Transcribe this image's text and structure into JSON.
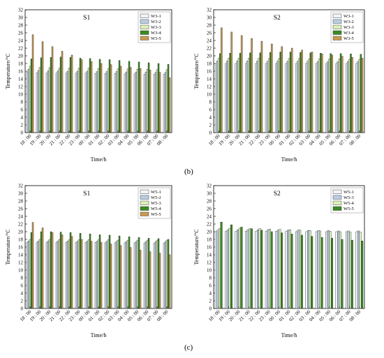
{
  "figure": {
    "labels": {
      "b": "(b)",
      "c": "(c)"
    }
  },
  "palette": {
    "W3-1": "#eef4fb",
    "W3-2": "#b9cfe6",
    "W3-3": "#ddf0b8",
    "W3-4": "#3b8a24",
    "W3-5": "#c89a52",
    "W5-1": "#eef4fb",
    "W5-2": "#b9cfe6",
    "W5-3": "#ddf0b8",
    "W5-4": "#3b8a24",
    "W5-5": "#c89a52",
    "S2c-W5-1": "#eef4fb",
    "S2c-W5-3": "#b9cfe6",
    "S2c-W5-4": "#ddf0b8",
    "S2c-W5-5": "#3b8a24"
  },
  "chart_data": [
    {
      "id": "b-S1",
      "type": "bar",
      "title": "S1",
      "xlabel": "Time/h",
      "ylabel": "Temperature/°C",
      "ylim": [
        0,
        32
      ],
      "yticks": [
        0,
        2,
        4,
        6,
        8,
        10,
        12,
        14,
        16,
        18,
        20,
        22,
        24,
        26,
        28,
        30,
        32
      ],
      "categories": [
        "18 : 00",
        "19 : 00",
        "20 : 00",
        "21 : 00",
        "22 : 00",
        "23 : 00",
        "00 : 00",
        "01 : 00",
        "02 : 00",
        "03 : 00",
        "04 : 00",
        "05 : 00",
        "06 : 00",
        "07 : 00",
        "08 : 00"
      ],
      "legend": "top-right",
      "series": [
        {
          "name": "W3-1",
          "color_key": "W3-1",
          "values": [
            15.8,
            15.6,
            15.5,
            15.5,
            15.5,
            15.5,
            15.5,
            15.4,
            15.4,
            15.4,
            15.3,
            15.3,
            15.2,
            15.2,
            15.2
          ]
        },
        {
          "name": "W3-2",
          "color_key": "W3-2",
          "values": [
            16.5,
            16.2,
            16.1,
            16.1,
            16.0,
            16.0,
            16.0,
            15.9,
            15.9,
            15.9,
            15.8,
            15.8,
            15.8,
            15.7,
            15.7
          ]
        },
        {
          "name": "W3-3",
          "color_key": "W3-3",
          "values": [
            17.3,
            17.0,
            16.9,
            16.8,
            16.8,
            16.8,
            16.8,
            16.7,
            16.6,
            16.6,
            16.6,
            16.5,
            16.5,
            16.4,
            16.4
          ]
        },
        {
          "name": "W3-4",
          "color_key": "W3-4",
          "values": [
            19.2,
            19.5,
            19.6,
            19.7,
            19.6,
            19.4,
            19.3,
            19.1,
            19.0,
            18.8,
            18.6,
            18.4,
            18.2,
            18.0,
            17.8
          ]
        },
        {
          "name": "W3-5",
          "color_key": "W3-5",
          "values": [
            25.5,
            23.7,
            22.4,
            21.2,
            20.2,
            19.0,
            18.5,
            18.0,
            17.7,
            17.3,
            17.0,
            16.7,
            16.3,
            15.7,
            14.3
          ]
        }
      ]
    },
    {
      "id": "b-S2",
      "type": "bar",
      "title": "S2",
      "xlabel": "Time/h",
      "ylabel": "Temperature/°C",
      "ylim": [
        0,
        32
      ],
      "yticks": [
        0,
        2,
        4,
        6,
        8,
        10,
        12,
        14,
        16,
        18,
        20,
        22,
        24,
        26,
        28,
        30,
        32
      ],
      "categories": [
        "18 : 00",
        "19 : 00",
        "20 : 00",
        "21 : 00",
        "22 : 00",
        "23 : 00",
        "00 : 00",
        "01 : 00",
        "02 : 00",
        "03 : 00",
        "04 : 00",
        "05 : 00",
        "06 : 00",
        "07 : 00",
        "08 : 00"
      ],
      "legend": "top-right",
      "series": [
        {
          "name": "W3-1",
          "color_key": "W3-1",
          "values": [
            18.0,
            18.0,
            18.0,
            18.0,
            18.0,
            18.0,
            18.0,
            18.0,
            18.0,
            18.0,
            18.0,
            18.0,
            18.0,
            18.0,
            18.0
          ]
        },
        {
          "name": "W3-2",
          "color_key": "W3-2",
          "values": [
            18.7,
            18.7,
            18.7,
            18.7,
            18.7,
            18.6,
            18.6,
            18.6,
            18.6,
            18.6,
            18.5,
            18.5,
            18.5,
            18.5,
            18.5
          ]
        },
        {
          "name": "W3-3",
          "color_key": "W3-3",
          "values": [
            19.4,
            19.4,
            19.4,
            19.4,
            19.4,
            19.3,
            19.3,
            19.3,
            19.3,
            19.2,
            19.2,
            19.2,
            19.2,
            19.1,
            19.1
          ]
        },
        {
          "name": "W3-4",
          "color_key": "W3-4",
          "values": [
            20.6,
            20.7,
            20.7,
            20.8,
            20.8,
            20.9,
            21.0,
            21.0,
            20.9,
            20.8,
            20.7,
            20.6,
            20.6,
            20.5,
            20.4
          ]
        },
        {
          "name": "W3-5",
          "color_key": "W3-5",
          "values": [
            27.3,
            26.2,
            25.3,
            24.5,
            23.8,
            23.1,
            22.4,
            22.0,
            21.5,
            21.0,
            20.5,
            20.2,
            19.9,
            19.6,
            19.4
          ]
        }
      ]
    },
    {
      "id": "c-S1",
      "type": "bar",
      "title": "S1",
      "xlabel": "Time/h",
      "ylabel": "Temperature/°C",
      "ylim": [
        0,
        32
      ],
      "yticks": [
        0,
        2,
        4,
        6,
        8,
        10,
        12,
        14,
        16,
        18,
        20,
        22,
        24,
        26,
        28,
        30,
        32
      ],
      "categories": [
        "18 : 00",
        "19 : 00",
        "20 : 00",
        "21 : 00",
        "22 : 00",
        "23 : 00",
        "00 : 00",
        "01 : 00",
        "02 : 00",
        "03 : 00",
        "04 : 00",
        "05 : 00",
        "06 : 00",
        "07 : 00",
        "08 : 00"
      ],
      "legend": "top-right",
      "series": [
        {
          "name": "W5-1",
          "color_key": "W5-1",
          "values": [
            17.2,
            17.2,
            17.2,
            17.2,
            17.2,
            17.2,
            17.2,
            17.2,
            17.1,
            17.1,
            17.1,
            17.1,
            17.0,
            17.0,
            17.0
          ]
        },
        {
          "name": "W5-2",
          "color_key": "W5-2",
          "values": [
            17.6,
            17.6,
            17.6,
            17.6,
            17.6,
            17.5,
            17.5,
            17.5,
            17.5,
            17.5,
            17.4,
            17.4,
            17.4,
            17.4,
            17.4
          ]
        },
        {
          "name": "W5-3",
          "color_key": "W5-3",
          "values": [
            18.0,
            18.0,
            18.0,
            18.0,
            17.9,
            17.9,
            17.9,
            17.9,
            17.9,
            17.8,
            17.8,
            17.8,
            17.8,
            17.8,
            17.8
          ]
        },
        {
          "name": "W5-4",
          "color_key": "W5-4",
          "values": [
            19.8,
            20.0,
            20.0,
            19.9,
            19.8,
            19.6,
            19.4,
            19.2,
            19.1,
            18.9,
            18.7,
            18.5,
            18.3,
            18.2,
            18.0
          ]
        },
        {
          "name": "W5-5",
          "color_key": "W5-5",
          "values": [
            22.4,
            21.0,
            19.8,
            19.2,
            18.8,
            18.0,
            17.5,
            17.2,
            16.8,
            16.4,
            15.9,
            15.2,
            14.8,
            14.4,
            14.0
          ]
        }
      ]
    },
    {
      "id": "c-S2",
      "type": "bar",
      "title": "S2",
      "xlabel": "Time/h",
      "ylabel": "Temperature/°C",
      "ylim": [
        0,
        32
      ],
      "yticks": [
        0,
        2,
        4,
        6,
        8,
        10,
        12,
        14,
        16,
        18,
        20,
        22,
        24,
        26,
        28,
        30,
        32
      ],
      "categories": [
        "18 : 00",
        "19 : 00",
        "20 : 00",
        "21 : 00",
        "22 : 00",
        "23 : 00",
        "00 : 00",
        "01 : 00",
        "02 : 00",
        "03 : 00",
        "04 : 00",
        "05 : 00",
        "06 : 00",
        "07 : 00",
        "08 : 00"
      ],
      "legend": "top-right",
      "series": [
        {
          "name": "W5-1",
          "color_key": "S2c-W5-1",
          "values": [
            20.0,
            20.1,
            20.1,
            20.1,
            20.1,
            20.1,
            20.1,
            20.1,
            20.0,
            20.0,
            20.0,
            20.0,
            20.0,
            20.0,
            20.0
          ]
        },
        {
          "name": "W5-3",
          "color_key": "S2c-W5-3",
          "values": [
            20.4,
            20.5,
            20.5,
            20.5,
            20.5,
            20.5,
            20.4,
            20.4,
            20.4,
            20.3,
            20.3,
            20.3,
            20.2,
            20.2,
            20.2
          ]
        },
        {
          "name": "W5-4",
          "color_key": "S2c-W5-4",
          "values": [
            20.8,
            20.9,
            20.9,
            20.8,
            20.8,
            20.7,
            20.6,
            20.5,
            20.4,
            20.3,
            20.2,
            20.1,
            20.0,
            19.9,
            19.9
          ]
        },
        {
          "name": "W5-5",
          "color_key": "S2c-W5-5",
          "values": [
            22.5,
            21.8,
            21.2,
            20.8,
            20.4,
            20.0,
            19.7,
            19.4,
            19.1,
            18.8,
            18.5,
            18.3,
            18.0,
            17.8,
            17.6
          ]
        }
      ]
    }
  ]
}
